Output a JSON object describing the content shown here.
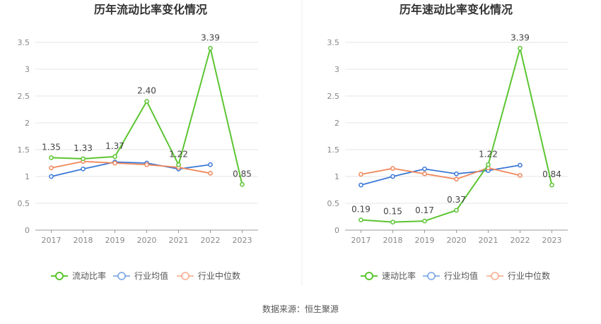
{
  "source": "数据来源：恒生聚源",
  "chart_data": [
    {
      "type": "line",
      "title": "历年流动比率变化情况",
      "x": [
        "2017",
        "2018",
        "2019",
        "2020",
        "2021",
        "2022",
        "2023"
      ],
      "ylim": [
        0,
        3.5
      ],
      "yticks": [
        "0",
        "0.5",
        "1",
        "1.5",
        "2",
        "2.5",
        "3",
        "3.5"
      ],
      "grid": true,
      "legend_position": "bottom",
      "series": [
        {
          "name": "流动比率",
          "color": "#5cc531",
          "values": [
            1.35,
            1.33,
            1.37,
            2.4,
            1.22,
            3.39,
            0.85
          ],
          "labels": [
            "1.35",
            "1.33",
            "1.37",
            "2.40",
            "1.22",
            "3.39",
            "0.85"
          ]
        },
        {
          "name": "行业均值",
          "color": "#3a78d6",
          "values": [
            1.0,
            1.14,
            1.27,
            1.25,
            1.14,
            1.22,
            null
          ]
        },
        {
          "name": "行业中位数",
          "color": "#f0865a",
          "values": [
            1.16,
            1.28,
            1.25,
            1.22,
            1.17,
            1.06,
            null
          ]
        }
      ]
    },
    {
      "type": "line",
      "title": "历年速动比率变化情况",
      "x": [
        "2017",
        "2018",
        "2019",
        "2020",
        "2021",
        "2022",
        "2023"
      ],
      "ylim": [
        0,
        3.5
      ],
      "yticks": [
        "0",
        "0.5",
        "1",
        "1.5",
        "2",
        "2.5",
        "3",
        "3.5"
      ],
      "grid": true,
      "legend_position": "bottom",
      "series": [
        {
          "name": "速动比率",
          "color": "#5cc531",
          "values": [
            0.19,
            0.15,
            0.17,
            0.37,
            1.22,
            3.39,
            0.84
          ],
          "labels": [
            "0.19",
            "0.15",
            "0.17",
            "0.37",
            "1.22",
            "3.39",
            "0.84"
          ]
        },
        {
          "name": "行业均值",
          "color": "#3a78d6",
          "values": [
            0.84,
            1.0,
            1.14,
            1.05,
            1.11,
            1.21,
            null
          ]
        },
        {
          "name": "行业中位数",
          "color": "#f0865a",
          "values": [
            1.04,
            1.15,
            1.05,
            0.95,
            1.16,
            1.02,
            null
          ]
        }
      ]
    }
  ]
}
